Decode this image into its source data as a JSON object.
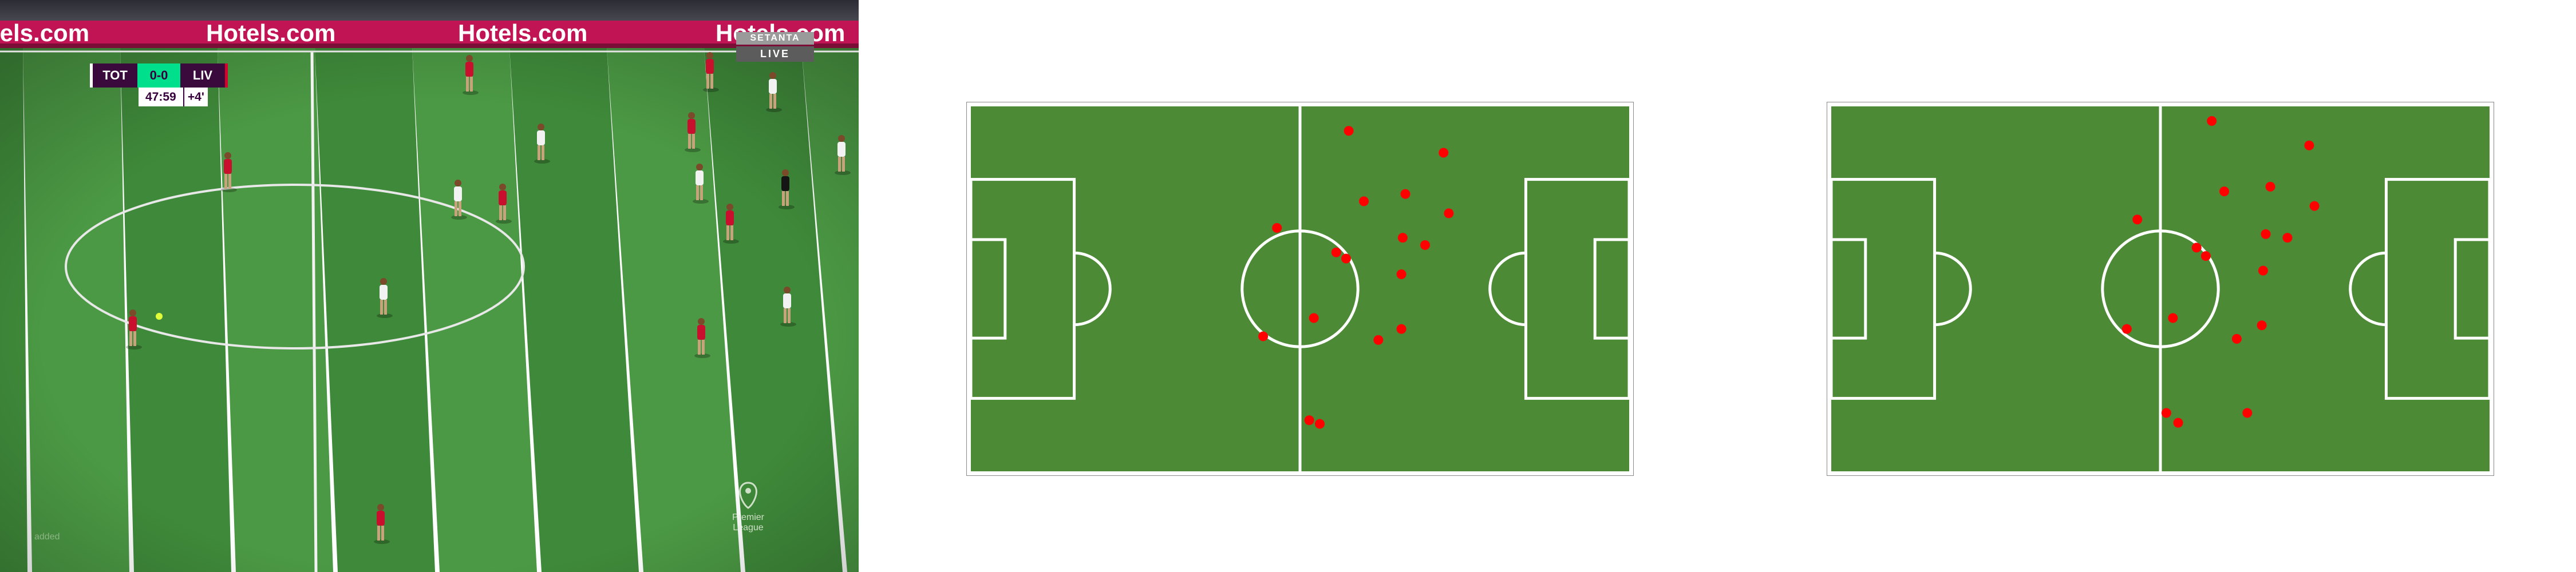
{
  "broadcast": {
    "ad_text": "Hotels.com",
    "partial_ad_text": "otels.com",
    "scorebug": {
      "home": "TOT",
      "score": "0-0",
      "away": "LIV",
      "clock": "47:59",
      "added_time": "+4'"
    },
    "broadcaster": {
      "name": "SETANTA",
      "live": "LIVE"
    },
    "league_badge": {
      "line1": "Premier",
      "line2": "League"
    },
    "watermark": "added"
  },
  "pitch_maps": [
    {
      "player_positions": [
        [
          0.574,
          0.067
        ],
        [
          0.718,
          0.127
        ],
        [
          0.597,
          0.26
        ],
        [
          0.66,
          0.24
        ],
        [
          0.726,
          0.293
        ],
        [
          0.465,
          0.333
        ],
        [
          0.656,
          0.36
        ],
        [
          0.69,
          0.38
        ],
        [
          0.555,
          0.4
        ],
        [
          0.57,
          0.417
        ],
        [
          0.654,
          0.46
        ],
        [
          0.521,
          0.58
        ],
        [
          0.654,
          0.61
        ],
        [
          0.444,
          0.63
        ],
        [
          0.619,
          0.64
        ],
        [
          0.514,
          0.86
        ],
        [
          0.53,
          0.87
        ]
      ]
    },
    {
      "player_positions": [
        [
          0.578,
          0.04
        ],
        [
          0.726,
          0.107
        ],
        [
          0.667,
          0.22
        ],
        [
          0.597,
          0.233
        ],
        [
          0.734,
          0.273
        ],
        [
          0.465,
          0.31
        ],
        [
          0.66,
          0.35
        ],
        [
          0.693,
          0.36
        ],
        [
          0.555,
          0.387
        ],
        [
          0.569,
          0.41
        ],
        [
          0.656,
          0.45
        ],
        [
          0.519,
          0.58
        ],
        [
          0.449,
          0.61
        ],
        [
          0.654,
          0.6
        ],
        [
          0.616,
          0.637
        ],
        [
          0.509,
          0.84
        ],
        [
          0.527,
          0.867
        ],
        [
          0.632,
          0.84
        ]
      ]
    }
  ]
}
